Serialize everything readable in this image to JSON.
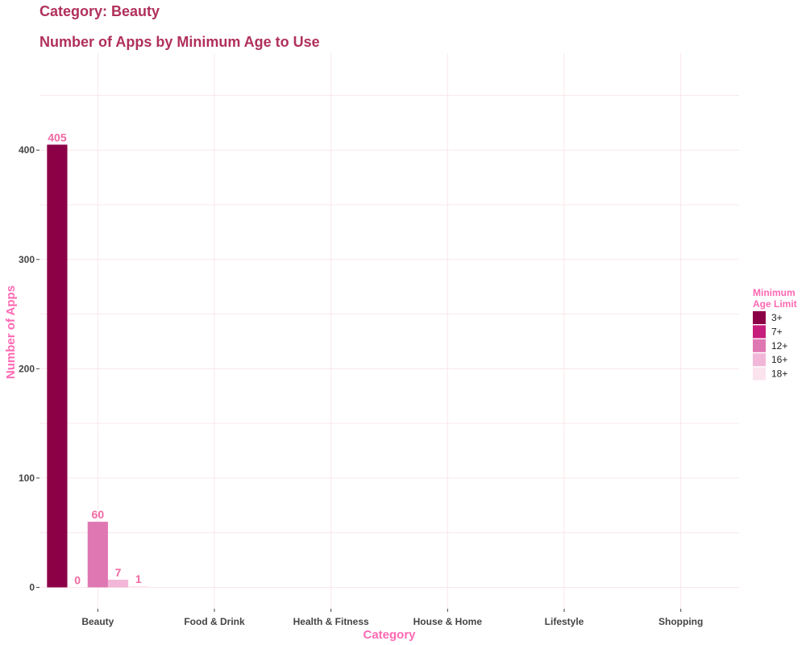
{
  "chart_data": {
    "type": "bar",
    "title": "Category: Beauty",
    "subtitle": "Number of Apps by Minimum Age to Use",
    "xlabel": "Category",
    "ylabel": "Number of Apps",
    "categories": [
      "Beauty",
      "Food & Drink",
      "Health & Fitness",
      "House & Home",
      "Lifestyle",
      "Shopping"
    ],
    "yticks": [
      0,
      100,
      200,
      300,
      400
    ],
    "ylim": [
      -20,
      455
    ],
    "grid": true,
    "legend": {
      "title_line1": "Minimum",
      "title_line2": "Age Limit",
      "placement": "right"
    },
    "series": [
      {
        "name": "3+",
        "color": "#8b0047",
        "values": [
          405,
          null,
          null,
          null,
          null,
          null
        ]
      },
      {
        "name": "7+",
        "color": "#c71d7c",
        "values": [
          0,
          null,
          null,
          null,
          null,
          null
        ]
      },
      {
        "name": "12+",
        "color": "#df77b2",
        "values": [
          60,
          null,
          null,
          null,
          null,
          null
        ]
      },
      {
        "name": "16+",
        "color": "#f2b7d8",
        "values": [
          7,
          null,
          null,
          null,
          null,
          null
        ]
      },
      {
        "name": "18+",
        "color": "#fbe3ee",
        "values": [
          1,
          null,
          null,
          null,
          null,
          null
        ]
      }
    ]
  }
}
